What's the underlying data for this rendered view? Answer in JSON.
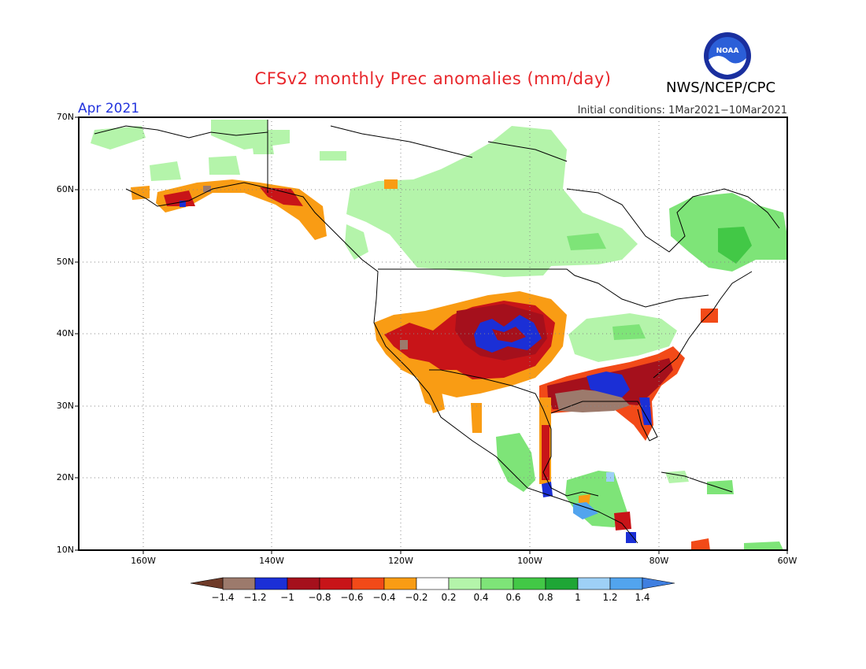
{
  "header": {
    "title": "CFSv2 monthly Prec anomalies (mm/day)",
    "month": "Apr 2021",
    "initial_conditions": "Initial conditions: 1Mar2021−10Mar2021",
    "org": "NWS/NCEP/CPC",
    "logo_text": "NOAA"
  },
  "map": {
    "lon_range": [
      -170,
      -60
    ],
    "lat_range": [
      10,
      70
    ],
    "lat_ticks": [
      "70N",
      "60N",
      "50N",
      "40N",
      "30N",
      "20N",
      "10N"
    ],
    "lon_ticks": [
      "160W",
      "140W",
      "120W",
      "100W",
      "80W",
      "60W"
    ],
    "gridlines": "dotted",
    "regions": [
      {
        "name": "Alaska north",
        "anomaly_class": "0.2..0.4"
      },
      {
        "name": "Canada prairies/Hudson Bay",
        "anomaly_class": "0.2..0.4"
      },
      {
        "name": "Quebec/Labrador",
        "anomaly_class": "0.4..0.6"
      },
      {
        "name": "Southwest US",
        "anomaly_class": "-0.4..-0.2"
      },
      {
        "name": "Colorado/Kansas",
        "anomaly_class": "-1..-0.8"
      },
      {
        "name": "Colorado core",
        "anomaly_class": "-1.2..-1"
      },
      {
        "name": "Gulf Coast",
        "anomaly_class": "-1.4..-1.2"
      },
      {
        "name": "Southeast US",
        "anomaly_class": "-1..-0.8"
      },
      {
        "name": "Ohio Valley",
        "anomaly_class": "0.2..0.4"
      },
      {
        "name": "Central America",
        "anomaly_class": "0.6..0.8"
      }
    ]
  },
  "colorbar": {
    "labels": [
      "−1.4",
      "−1.2",
      "−1",
      "−0.8",
      "−0.6",
      "−0.4",
      "−0.2",
      "0.2",
      "0.4",
      "0.6",
      "0.8",
      "1",
      "1.2",
      "1.4"
    ],
    "low_end_color": "#6e3a28",
    "high_end_color": "#3f7fe0",
    "colors": [
      "#9c7a6c",
      "#1b2fd6",
      "#a5101c",
      "#c81418",
      "#f24a18",
      "#f99c14",
      "#ffffff",
      "#b4f4aa",
      "#7ee478",
      "#42c846",
      "#1ea636",
      "#9ed0f6",
      "#52a4ee"
    ]
  }
}
